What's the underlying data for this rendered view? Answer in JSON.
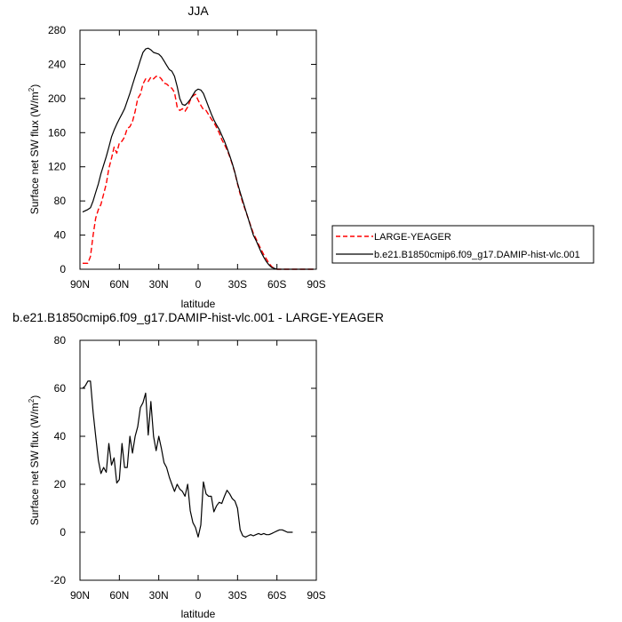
{
  "chart_data": [
    {
      "type": "line",
      "title": "JJA",
      "xlabel": "latitude",
      "ylabel": "Surface net SW flux (W/m",
      "ylabel_sup": "2",
      "ylabel_close": ")",
      "xlim": [
        90,
        -90
      ],
      "ylim": [
        0,
        280
      ],
      "xticks": [
        90,
        60,
        30,
        0,
        -30,
        -60,
        -90
      ],
      "xtick_labels": [
        "90N",
        "60N",
        "30N",
        "0",
        "30S",
        "60S",
        "90S"
      ],
      "yticks": [
        0,
        40,
        80,
        120,
        160,
        200,
        240,
        280
      ],
      "legend_position": "outside-right",
      "series": [
        {
          "name": "LARGE-YEAGER",
          "color": "#ff0000",
          "dash": "dashed",
          "points": [
            [
              88,
              7
            ],
            [
              84,
              7
            ],
            [
              82,
              15
            ],
            [
              80,
              40
            ],
            [
              78,
              60
            ],
            [
              76,
              70
            ],
            [
              74,
              76
            ],
            [
              72,
              88
            ],
            [
              70,
              100
            ],
            [
              68,
              118
            ],
            [
              66,
              130
            ],
            [
              64,
              143
            ],
            [
              62,
              136
            ],
            [
              60,
              148
            ],
            [
              58,
              150
            ],
            [
              56,
              155
            ],
            [
              54,
              165
            ],
            [
              52,
              167
            ],
            [
              50,
              173
            ],
            [
              48,
              185
            ],
            [
              46,
              200
            ],
            [
              44,
              205
            ],
            [
              42,
              217
            ],
            [
              40,
              223
            ],
            [
              38,
              220
            ],
            [
              36,
              225
            ],
            [
              34,
              223
            ],
            [
              32,
              226
            ],
            [
              30,
              226
            ],
            [
              28,
              223
            ],
            [
              26,
              218
            ],
            [
              24,
              217
            ],
            [
              22,
              214
            ],
            [
              20,
              212
            ],
            [
              18,
              207
            ],
            [
              16,
              190
            ],
            [
              14,
              186
            ],
            [
              12,
              188
            ],
            [
              10,
              185
            ],
            [
              8,
              190
            ],
            [
              6,
              198
            ],
            [
              4,
              203
            ],
            [
              2,
              205
            ],
            [
              0,
              198
            ],
            [
              -2,
              192
            ],
            [
              -4,
              187
            ],
            [
              -6,
              186
            ],
            [
              -8,
              181
            ],
            [
              -10,
              176
            ],
            [
              -12,
              172
            ],
            [
              -14,
              166
            ],
            [
              -16,
              160
            ],
            [
              -18,
              152
            ],
            [
              -20,
              146
            ],
            [
              -22,
              140
            ],
            [
              -24,
              132
            ],
            [
              -26,
              123
            ],
            [
              -28,
              113
            ],
            [
              -30,
              100
            ],
            [
              -32,
              88
            ],
            [
              -34,
              78
            ],
            [
              -36,
              69
            ],
            [
              -38,
              60
            ],
            [
              -40,
              51
            ],
            [
              -42,
              42
            ],
            [
              -44,
              36
            ],
            [
              -46,
              29
            ],
            [
              -48,
              23
            ],
            [
              -50,
              17
            ],
            [
              -52,
              12
            ],
            [
              -54,
              7
            ],
            [
              -56,
              3
            ],
            [
              -58,
              1
            ],
            [
              -60,
              0
            ],
            [
              -70,
              0
            ],
            [
              -80,
              0
            ],
            [
              -88,
              0
            ]
          ]
        },
        {
          "name": "b.e21.B1850cmip6.f09_g17.DAMIP-hist-vlc.001",
          "color": "#000000",
          "dash": "solid",
          "points": [
            [
              88,
              67
            ],
            [
              84,
              70
            ],
            [
              82,
              72
            ],
            [
              80,
              80
            ],
            [
              78,
              90
            ],
            [
              76,
              100
            ],
            [
              74,
              112
            ],
            [
              72,
              122
            ],
            [
              70,
              132
            ],
            [
              68,
              143
            ],
            [
              66,
              155
            ],
            [
              64,
              163
            ],
            [
              62,
              170
            ],
            [
              60,
              176
            ],
            [
              58,
              182
            ],
            [
              56,
              188
            ],
            [
              54,
              197
            ],
            [
              52,
              206
            ],
            [
              50,
              216
            ],
            [
              48,
              226
            ],
            [
              46,
              235
            ],
            [
              44,
              245
            ],
            [
              42,
              254
            ],
            [
              40,
              258
            ],
            [
              38,
              259
            ],
            [
              36,
              257
            ],
            [
              34,
              254
            ],
            [
              32,
              253
            ],
            [
              30,
              252
            ],
            [
              28,
              249
            ],
            [
              26,
              244
            ],
            [
              24,
              239
            ],
            [
              22,
              234
            ],
            [
              20,
              232
            ],
            [
              18,
              226
            ],
            [
              16,
              214
            ],
            [
              14,
              200
            ],
            [
              12,
              193
            ],
            [
              10,
              192
            ],
            [
              8,
              195
            ],
            [
              6,
              199
            ],
            [
              4,
              204
            ],
            [
              2,
              209
            ],
            [
              0,
              211
            ],
            [
              -2,
              210
            ],
            [
              -4,
              206
            ],
            [
              -6,
              198
            ],
            [
              -8,
              190
            ],
            [
              -10,
              182
            ],
            [
              -12,
              175
            ],
            [
              -14,
              169
            ],
            [
              -16,
              164
            ],
            [
              -18,
              157
            ],
            [
              -20,
              150
            ],
            [
              -22,
              142
            ],
            [
              -24,
              133
            ],
            [
              -26,
              124
            ],
            [
              -28,
              113
            ],
            [
              -30,
              101
            ],
            [
              -32,
              90
            ],
            [
              -34,
              80
            ],
            [
              -36,
              70
            ],
            [
              -38,
              60
            ],
            [
              -40,
              50
            ],
            [
              -42,
              40
            ],
            [
              -44,
              34
            ],
            [
              -46,
              27
            ],
            [
              -48,
              20
            ],
            [
              -50,
              14
            ],
            [
              -52,
              9
            ],
            [
              -54,
              5
            ],
            [
              -56,
              2
            ],
            [
              -58,
              1
            ],
            [
              -60,
              0
            ],
            [
              -70,
              0
            ],
            [
              -80,
              0
            ],
            [
              -88,
              0
            ]
          ]
        }
      ]
    },
    {
      "type": "line",
      "title": "b.e21.B1850cmip6.f09_g17.DAMIP-hist-vlc.001 - LARGE-YEAGER",
      "xlabel": "latitude",
      "ylabel": "Surface net SW flux (W/m",
      "ylabel_sup": "2",
      "ylabel_close": ")",
      "xlim": [
        90,
        -90
      ],
      "ylim": [
        -20,
        80
      ],
      "xticks": [
        90,
        60,
        30,
        0,
        -30,
        -60,
        -90
      ],
      "xtick_labels": [
        "90N",
        "60N",
        "30N",
        "0",
        "30S",
        "60S",
        "90S"
      ],
      "yticks": [
        -20,
        0,
        20,
        40,
        60,
        80
      ],
      "series": [
        {
          "color": "#000000",
          "dash": "solid",
          "points": [
            [
              88,
              60
            ],
            [
              86,
              61
            ],
            [
              84,
              63
            ],
            [
              82,
              63
            ],
            [
              80,
              50
            ],
            [
              78,
              40
            ],
            [
              76,
              30
            ],
            [
              74,
              24.5
            ],
            [
              72,
              27
            ],
            [
              70,
              25
            ],
            [
              68,
              37
            ],
            [
              66,
              28
            ],
            [
              64,
              31
            ],
            [
              62,
              20.5
            ],
            [
              60,
              22
            ],
            [
              58,
              37
            ],
            [
              56,
              27
            ],
            [
              54,
              27
            ],
            [
              52,
              40
            ],
            [
              50,
              33
            ],
            [
              48,
              40
            ],
            [
              46,
              44
            ],
            [
              44,
              52
            ],
            [
              42,
              54
            ],
            [
              40,
              58
            ],
            [
              38,
              40.5
            ],
            [
              36,
              54.5
            ],
            [
              34,
              40
            ],
            [
              32,
              34
            ],
            [
              30,
              40
            ],
            [
              28,
              35
            ],
            [
              26,
              29
            ],
            [
              24,
              27
            ],
            [
              22,
              23
            ],
            [
              20,
              20
            ],
            [
              18,
              17
            ],
            [
              16,
              20
            ],
            [
              14,
              18
            ],
            [
              12,
              17
            ],
            [
              10,
              15
            ],
            [
              8,
              20
            ],
            [
              6,
              9
            ],
            [
              4,
              4
            ],
            [
              2,
              2
            ],
            [
              0,
              -2
            ],
            [
              -2,
              3
            ],
            [
              -4,
              21
            ],
            [
              -6,
              16
            ],
            [
              -8,
              15
            ],
            [
              -10,
              15
            ],
            [
              -12,
              8.5
            ],
            [
              -14,
              11
            ],
            [
              -16,
              12.5
            ],
            [
              -18,
              12
            ],
            [
              -20,
              15
            ],
            [
              -22,
              17.5
            ],
            [
              -24,
              16
            ],
            [
              -26,
              14
            ],
            [
              -28,
              13
            ],
            [
              -30,
              10
            ],
            [
              -32,
              1
            ],
            [
              -34,
              -1.5
            ],
            [
              -36,
              -2
            ],
            [
              -38,
              -1.5
            ],
            [
              -40,
              -1
            ],
            [
              -42,
              -1.5
            ],
            [
              -44,
              -1
            ],
            [
              -46,
              -0.5
            ],
            [
              -48,
              -1
            ],
            [
              -50,
              -0.5
            ],
            [
              -52,
              -1
            ],
            [
              -54,
              -1
            ],
            [
              -56,
              -0.5
            ],
            [
              -58,
              0
            ],
            [
              -60,
              0.5
            ],
            [
              -62,
              1
            ],
            [
              -64,
              1
            ],
            [
              -66,
              0.5
            ],
            [
              -68,
              0
            ],
            [
              -70,
              0
            ],
            [
              -72,
              0
            ]
          ]
        }
      ]
    }
  ]
}
